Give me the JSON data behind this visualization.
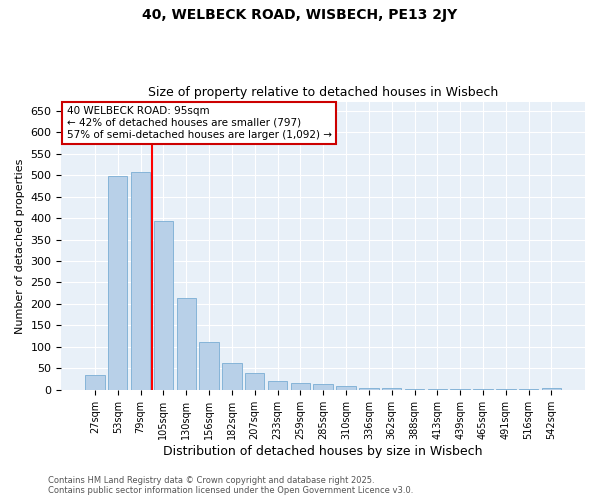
{
  "title_line1": "40, WELBECK ROAD, WISBECH, PE13 2JY",
  "title_line2": "Size of property relative to detached houses in Wisbech",
  "xlabel": "Distribution of detached houses by size in Wisbech",
  "ylabel": "Number of detached properties",
  "categories": [
    "27sqm",
    "53sqm",
    "79sqm",
    "105sqm",
    "130sqm",
    "156sqm",
    "182sqm",
    "207sqm",
    "233sqm",
    "259sqm",
    "285sqm",
    "310sqm",
    "336sqm",
    "362sqm",
    "388sqm",
    "413sqm",
    "439sqm",
    "465sqm",
    "491sqm",
    "516sqm",
    "542sqm"
  ],
  "values": [
    35,
    497,
    507,
    393,
    213,
    111,
    62,
    40,
    20,
    16,
    13,
    10,
    5,
    4,
    3,
    2,
    1,
    1,
    1,
    1,
    5
  ],
  "bar_color": "#b8d0e8",
  "bar_edge_color": "#7aadd4",
  "background_color": "#ffffff",
  "plot_bg_color": "#e8f0f8",
  "grid_color": "#ffffff",
  "red_line_x": 2.5,
  "annotation_text": "40 WELBECK ROAD: 95sqm\n← 42% of detached houses are smaller (797)\n57% of semi-detached houses are larger (1,092) →",
  "annotation_box_color": "#ffffff",
  "annotation_border_color": "#cc0000",
  "footer_line1": "Contains HM Land Registry data © Crown copyright and database right 2025.",
  "footer_line2": "Contains public sector information licensed under the Open Government Licence v3.0.",
  "ylim": [
    0,
    670
  ],
  "yticks": [
    0,
    50,
    100,
    150,
    200,
    250,
    300,
    350,
    400,
    450,
    500,
    550,
    600,
    650
  ]
}
